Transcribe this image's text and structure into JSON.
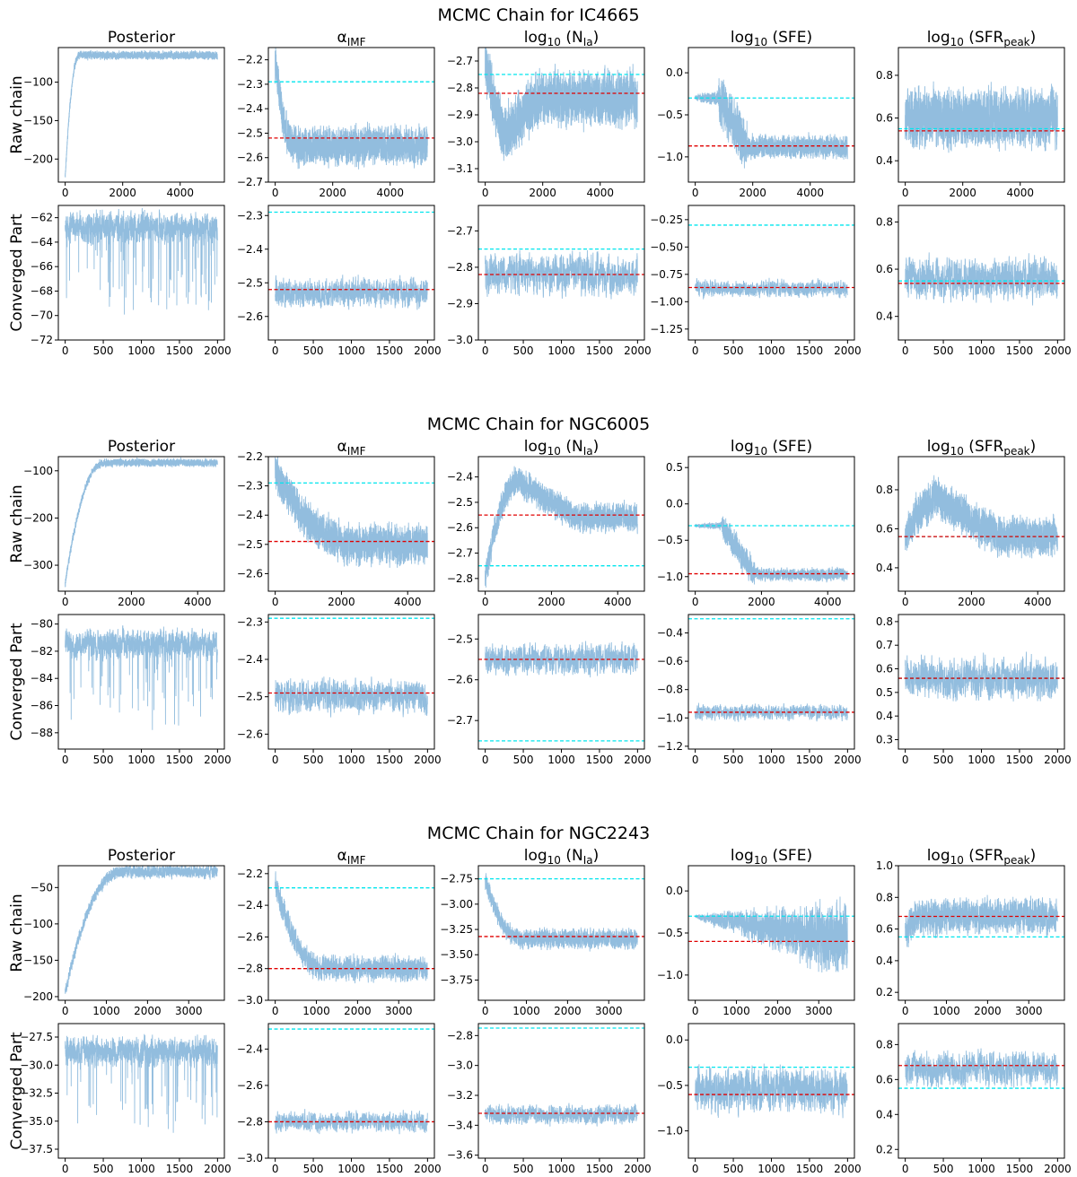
{
  "colors": {
    "chain": "#7fb1d8",
    "reference": "#00e5ee",
    "best_fit": "#e00000",
    "frame": "#000000"
  },
  "chart_data": [
    {
      "type": "line",
      "title": "MCMC Chain for IC4665",
      "row_labels": [
        "Raw chain",
        "Converged Part"
      ],
      "columns": [
        "Posterior",
        "αIMF",
        "log10 (NIa)",
        "log10 (SFE)",
        "log10 (SFRpeak)"
      ],
      "panels": [
        {
          "row": 0,
          "col": 0,
          "n": 5300,
          "ylim": [
            -230,
            -55
          ],
          "yticks": [
            -100,
            -150,
            -200
          ],
          "xticks": [
            0,
            2000,
            4000
          ],
          "pattern": "burnin",
          "start": -225,
          "burn": 500,
          "final": -65,
          "noise": 5,
          "ref": null,
          "best": null
        },
        {
          "row": 0,
          "col": 1,
          "n": 5300,
          "ylim": [
            -2.7,
            -2.15
          ],
          "yticks": [
            -2.2,
            -2.3,
            -2.4,
            -2.5,
            -2.6,
            -2.7
          ],
          "xticks": [
            0,
            2000,
            4000
          ],
          "pattern": "burnin",
          "start": -2.2,
          "burn": 700,
          "final": -2.55,
          "noise": 0.07,
          "ref": -2.29,
          "best": -2.52
        },
        {
          "row": 0,
          "col": 2,
          "n": 5300,
          "ylim": [
            -3.15,
            -2.65
          ],
          "yticks": [
            -2.7,
            -2.8,
            -2.9,
            -3.0,
            -3.1
          ],
          "xticks": [
            0,
            2000,
            4000
          ],
          "pattern": "dip",
          "start": -2.72,
          "burn": 1800,
          "final": -2.84,
          "low": -2.98,
          "noise": 0.09,
          "ref": -2.75,
          "best": -2.82
        },
        {
          "row": 0,
          "col": 3,
          "n": 5300,
          "ylim": [
            -1.3,
            0.3
          ],
          "yticks": [
            0.0,
            -0.5,
            -1.0
          ],
          "xticks": [
            0,
            2000,
            4000
          ],
          "pattern": "plateau",
          "start": -0.3,
          "burn": 1800,
          "final": -0.88,
          "noise": 0.12,
          "ref": -0.3,
          "best": -0.87
        },
        {
          "row": 0,
          "col": 4,
          "n": 5300,
          "ylim": [
            0.3,
            0.93
          ],
          "yticks": [
            0.8,
            0.6,
            0.4
          ],
          "xticks": [
            0,
            2000,
            4000
          ],
          "pattern": "stationary",
          "final": 0.6,
          "noise": 0.12,
          "ref": 0.55,
          "best": 0.54
        },
        {
          "row": 1,
          "col": 0,
          "n": 2000,
          "ylim": [
            -72,
            -61
          ],
          "yticks": [
            -62,
            -64,
            -66,
            -68,
            -70,
            -72
          ],
          "xticks": [
            0,
            500,
            1000,
            1500,
            2000
          ],
          "pattern": "posterior",
          "final": -62.8,
          "noise": 1.2,
          "ref": null,
          "best": null
        },
        {
          "row": 1,
          "col": 1,
          "n": 2000,
          "ylim": [
            -2.67,
            -2.27
          ],
          "yticks": [
            -2.3,
            -2.4,
            -2.5,
            -2.6
          ],
          "xticks": [
            0,
            500,
            1000,
            1500,
            2000
          ],
          "pattern": "stationary",
          "final": -2.53,
          "noise": 0.04,
          "ref": -2.29,
          "best": -2.52
        },
        {
          "row": 1,
          "col": 2,
          "n": 2000,
          "ylim": [
            -3.0,
            -2.63
          ],
          "yticks": [
            -2.7,
            -2.8,
            -2.9,
            -3.0
          ],
          "xticks": [
            0,
            500,
            1000,
            1500,
            2000
          ],
          "pattern": "stationary",
          "final": -2.82,
          "noise": 0.05,
          "ref": -2.75,
          "best": -2.82
        },
        {
          "row": 1,
          "col": 3,
          "n": 2000,
          "ylim": [
            -1.35,
            -0.12
          ],
          "yticks": [
            -0.25,
            -0.5,
            -0.75,
            -1.0,
            -1.25
          ],
          "xticks": [
            0,
            500,
            1000,
            1500,
            2000
          ],
          "pattern": "stationary",
          "final": -0.88,
          "noise": 0.07,
          "ref": -0.3,
          "best": -0.87
        },
        {
          "row": 1,
          "col": 4,
          "n": 2000,
          "ylim": [
            0.3,
            0.87
          ],
          "yticks": [
            0.8,
            0.6,
            0.4
          ],
          "xticks": [
            0,
            500,
            1000,
            1500,
            2000
          ],
          "pattern": "stationary",
          "final": 0.56,
          "noise": 0.08,
          "ref": 0.55,
          "best": 0.54
        }
      ]
    },
    {
      "type": "line",
      "title": "MCMC Chain for NGC6005",
      "row_labels": [
        "Raw chain",
        "Converged Part"
      ],
      "columns": [
        "Posterior",
        "αIMF",
        "log10 (NIa)",
        "log10 (SFE)",
        "log10 (SFRpeak)"
      ],
      "panels": [
        {
          "row": 0,
          "col": 0,
          "n": 4600,
          "ylim": [
            -355,
            -70
          ],
          "yticks": [
            -100,
            -200,
            -300
          ],
          "xticks": [
            0,
            2000,
            4000
          ],
          "pattern": "burnin",
          "start": -340,
          "burn": 1200,
          "final": -83,
          "noise": 8,
          "ref": null,
          "best": null
        },
        {
          "row": 0,
          "col": 1,
          "n": 4600,
          "ylim": [
            -2.66,
            -2.2
          ],
          "yticks": [
            -2.2,
            -2.3,
            -2.4,
            -2.5,
            -2.6
          ],
          "xticks": [
            0,
            2000,
            4000
          ],
          "pattern": "burnin",
          "start": -2.25,
          "burn": 2500,
          "final": -2.5,
          "noise": 0.06,
          "ref": -2.29,
          "best": -2.49
        },
        {
          "row": 0,
          "col": 2,
          "n": 4600,
          "ylim": [
            -2.85,
            -2.32
          ],
          "yticks": [
            -2.4,
            -2.5,
            -2.6,
            -2.7,
            -2.8
          ],
          "xticks": [
            0,
            2000,
            4000
          ],
          "pattern": "overshoot",
          "start": -2.8,
          "burn": 1000,
          "peak": -2.42,
          "final": -2.56,
          "noise": 0.05,
          "ref": -2.75,
          "best": -2.55
        },
        {
          "row": 0,
          "col": 3,
          "n": 4600,
          "ylim": [
            -1.2,
            0.65
          ],
          "yticks": [
            0.5,
            0.0,
            -0.5,
            -1.0
          ],
          "xticks": [
            0,
            2000,
            4000
          ],
          "pattern": "plateau",
          "start": -0.3,
          "burn": 1800,
          "final": -0.97,
          "noise": 0.08,
          "ref": -0.3,
          "best": -0.96
        },
        {
          "row": 0,
          "col": 4,
          "n": 4600,
          "ylim": [
            0.28,
            0.97
          ],
          "yticks": [
            0.8,
            0.6,
            0.4
          ],
          "xticks": [
            0,
            2000,
            4000
          ],
          "pattern": "overshoot",
          "start": 0.55,
          "burn": 1000,
          "peak": 0.75,
          "final": 0.56,
          "noise": 0.09,
          "ref": 0.56,
          "best": 0.56
        },
        {
          "row": 1,
          "col": 0,
          "n": 2000,
          "ylim": [
            -89.2,
            -79.3
          ],
          "yticks": [
            -80,
            -82,
            -84,
            -86,
            -88
          ],
          "xticks": [
            0,
            500,
            1000,
            1500,
            2000
          ],
          "pattern": "posterior",
          "final": -81.5,
          "noise": 1.0,
          "ref": null,
          "best": null
        },
        {
          "row": 1,
          "col": 1,
          "n": 2000,
          "ylim": [
            -2.64,
            -2.28
          ],
          "yticks": [
            -2.3,
            -2.4,
            -2.5,
            -2.6
          ],
          "xticks": [
            0,
            500,
            1000,
            1500,
            2000
          ],
          "pattern": "stationary",
          "final": -2.5,
          "noise": 0.04,
          "ref": -2.29,
          "best": -2.49
        },
        {
          "row": 1,
          "col": 2,
          "n": 2000,
          "ylim": [
            -2.77,
            -2.44
          ],
          "yticks": [
            -2.5,
            -2.6,
            -2.7
          ],
          "xticks": [
            0,
            500,
            1000,
            1500,
            2000
          ],
          "pattern": "stationary",
          "final": -2.55,
          "noise": 0.035,
          "ref": -2.75,
          "best": -2.55
        },
        {
          "row": 1,
          "col": 3,
          "n": 2000,
          "ylim": [
            -1.22,
            -0.27
          ],
          "yticks": [
            -0.4,
            -0.6,
            -0.8,
            -1.0,
            -1.2
          ],
          "xticks": [
            0,
            500,
            1000,
            1500,
            2000
          ],
          "pattern": "stationary",
          "final": -0.96,
          "noise": 0.05,
          "ref": -0.3,
          "best": -0.96
        },
        {
          "row": 1,
          "col": 4,
          "n": 2000,
          "ylim": [
            0.26,
            0.83
          ],
          "yticks": [
            0.8,
            0.7,
            0.6,
            0.5,
            0.4,
            0.3
          ],
          "xticks": [
            0,
            500,
            1000,
            1500,
            2000
          ],
          "pattern": "stationary",
          "final": 0.56,
          "noise": 0.08,
          "ref": 0.56,
          "best": 0.56
        }
      ]
    },
    {
      "type": "line",
      "title": "MCMC Chain for NGC2243",
      "row_labels": [
        "Raw chain",
        "Converged Part"
      ],
      "columns": [
        "Posterior",
        "αIMF",
        "log10 (NIa)",
        "log10 (SFE)",
        "log10 (SFRpeak)"
      ],
      "panels": [
        {
          "row": 0,
          "col": 0,
          "n": 3700,
          "ylim": [
            -205,
            -20
          ],
          "yticks": [
            -50,
            -100,
            -150,
            -200
          ],
          "xticks": [
            0,
            1000,
            2000,
            3000
          ],
          "pattern": "burnin",
          "start": -195,
          "burn": 1400,
          "final": -28,
          "noise": 8,
          "ref": null,
          "best": null
        },
        {
          "row": 0,
          "col": 1,
          "n": 3700,
          "ylim": [
            -3.0,
            -2.15
          ],
          "yticks": [
            -2.2,
            -2.4,
            -2.6,
            -2.8,
            -3.0
          ],
          "xticks": [
            0,
            1000,
            2000,
            3000
          ],
          "pattern": "burnin",
          "start": -2.25,
          "burn": 1200,
          "final": -2.8,
          "noise": 0.07,
          "ref": -2.29,
          "best": -2.8
        },
        {
          "row": 0,
          "col": 2,
          "n": 3700,
          "ylim": [
            -3.95,
            -2.62
          ],
          "yticks": [
            -2.75,
            -3.0,
            -3.25,
            -3.5,
            -3.75
          ],
          "xticks": [
            0,
            1000,
            2000,
            3000
          ],
          "pattern": "burnin",
          "start": -2.75,
          "burn": 900,
          "final": -3.34,
          "noise": 0.09,
          "ref": -2.75,
          "best": -3.32
        },
        {
          "row": 0,
          "col": 3,
          "n": 3700,
          "ylim": [
            -1.3,
            0.3
          ],
          "yticks": [
            0.0,
            -0.5,
            -1.0
          ],
          "xticks": [
            0,
            1000,
            2000,
            3000
          ],
          "pattern": "funnel",
          "start": -0.3,
          "final": -0.6,
          "noise": 0.35,
          "ref": -0.3,
          "best": -0.6
        },
        {
          "row": 0,
          "col": 4,
          "n": 3700,
          "ylim": [
            0.15,
            1.0
          ],
          "yticks": [
            1.0,
            0.8,
            0.6,
            0.4,
            0.2
          ],
          "xticks": [
            0,
            1000,
            2000,
            3000
          ],
          "pattern": "burnin",
          "start": 0.55,
          "burn": 300,
          "final": 0.68,
          "noise": 0.1,
          "ref": 0.55,
          "best": 0.68
        },
        {
          "row": 1,
          "col": 0,
          "n": 2000,
          "ylim": [
            -38.3,
            -26.3
          ],
          "yticks": [
            -27.5,
            -30.0,
            -32.5,
            -35.0,
            -37.5
          ],
          "xticks": [
            0,
            500,
            1000,
            1500,
            2000
          ],
          "pattern": "posterior",
          "final": -28.8,
          "noise": 1.2,
          "ref": null,
          "best": null
        },
        {
          "row": 1,
          "col": 1,
          "n": 2000,
          "ylim": [
            -3.0,
            -2.26
          ],
          "yticks": [
            -2.4,
            -2.6,
            -2.8,
            -3.0
          ],
          "xticks": [
            0,
            500,
            1000,
            1500,
            2000
          ],
          "pattern": "stationary",
          "final": -2.8,
          "noise": 0.05,
          "ref": -2.29,
          "best": -2.8
        },
        {
          "row": 1,
          "col": 2,
          "n": 2000,
          "ylim": [
            -3.62,
            -2.72
          ],
          "yticks": [
            -2.8,
            -3.0,
            -3.2,
            -3.4,
            -3.6
          ],
          "xticks": [
            0,
            500,
            1000,
            1500,
            2000
          ],
          "pattern": "stationary",
          "final": -3.33,
          "noise": 0.06,
          "ref": -2.75,
          "best": -3.32
        },
        {
          "row": 1,
          "col": 3,
          "n": 2000,
          "ylim": [
            -1.3,
            0.18
          ],
          "yticks": [
            0.0,
            -0.5,
            -1.0
          ],
          "xticks": [
            0,
            500,
            1000,
            1500,
            2000
          ],
          "pattern": "stationary",
          "final": -0.55,
          "noise": 0.22,
          "ref": -0.3,
          "best": -0.6
        },
        {
          "row": 1,
          "col": 4,
          "n": 2000,
          "ylim": [
            0.15,
            0.92
          ],
          "yticks": [
            0.8,
            0.6,
            0.4,
            0.2
          ],
          "xticks": [
            0,
            500,
            1000,
            1500,
            2000
          ],
          "pattern": "stationary",
          "final": 0.66,
          "noise": 0.09,
          "ref": 0.55,
          "best": 0.68
        }
      ]
    }
  ]
}
